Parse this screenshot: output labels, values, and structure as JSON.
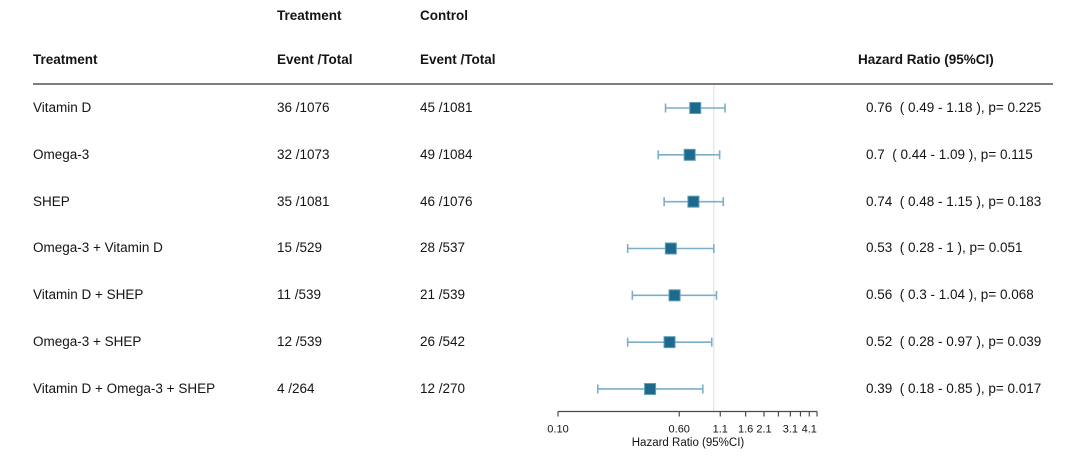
{
  "table": {
    "group_headers": {
      "treatment": "Treatment",
      "control": "Control"
    },
    "col_headers": {
      "treatment": "Treatment",
      "treatment_event_total": "Event /Total",
      "control_event_total": "Event /Total",
      "hazard_ratio": "Hazard Ratio (95%CI)"
    },
    "rows": [
      {
        "treatment": "Vitamin D",
        "treatment_et": "36 /1076",
        "control_et": "45 /1081",
        "hr_text": "0.76  ( 0.49 - 1.18 ), p= 0.225"
      },
      {
        "treatment": "Omega-3",
        "treatment_et": "32 /1073",
        "control_et": "49 /1084",
        "hr_text": "0.7  ( 0.44 - 1.09 ), p= 0.115"
      },
      {
        "treatment": "SHEP",
        "treatment_et": "35 /1081",
        "control_et": "46 /1076",
        "hr_text": "0.74  ( 0.48 - 1.15 ), p= 0.183"
      },
      {
        "treatment": "Omega-3 + Vitamin D",
        "treatment_et": "15 /529",
        "control_et": "28 /537",
        "hr_text": "0.53  ( 0.28 - 1 ), p= 0.051"
      },
      {
        "treatment": "Vitamin D + SHEP",
        "treatment_et": "11 /539",
        "control_et": "21 /539",
        "hr_text": "0.56  ( 0.3 - 1.04 ), p= 0.068"
      },
      {
        "treatment": "Omega-3 + SHEP",
        "treatment_et": "12 /539",
        "control_et": "26 /542",
        "hr_text": "0.52  ( 0.28 - 0.97 ), p= 0.039"
      },
      {
        "treatment": "Vitamin D + Omega-3 + SHEP",
        "treatment_et": "4 /264",
        "control_et": "12 /270",
        "hr_text": "0.39  ( 0.18 - 0.85 ), p= 0.017"
      }
    ]
  },
  "chart_data": {
    "type": "scatter",
    "subtype": "forest-plot",
    "title": "",
    "xlabel": "Hazard Ratio (95%CI)",
    "x_scale": "log",
    "xlim": [
      0.1,
      4.6
    ],
    "ref_line": 1.0,
    "grid": false,
    "series": [
      {
        "label": "Vitamin D",
        "hr": 0.76,
        "ci_low": 0.49,
        "ci_high": 1.18,
        "p": 0.225
      },
      {
        "label": "Omega-3",
        "hr": 0.7,
        "ci_low": 0.44,
        "ci_high": 1.09,
        "p": 0.115
      },
      {
        "label": "SHEP",
        "hr": 0.74,
        "ci_low": 0.48,
        "ci_high": 1.15,
        "p": 0.183
      },
      {
        "label": "Omega-3 + Vitamin D",
        "hr": 0.53,
        "ci_low": 0.28,
        "ci_high": 1.0,
        "p": 0.051
      },
      {
        "label": "Vitamin D + SHEP",
        "hr": 0.56,
        "ci_low": 0.3,
        "ci_high": 1.04,
        "p": 0.068
      },
      {
        "label": "Omega-3 + SHEP",
        "hr": 0.52,
        "ci_low": 0.28,
        "ci_high": 0.97,
        "p": 0.039
      },
      {
        "label": "Vitamin D + Omega-3 + SHEP",
        "hr": 0.39,
        "ci_low": 0.18,
        "ci_high": 0.85,
        "p": 0.017
      }
    ],
    "x_ticks": [
      {
        "value": 0.1,
        "label": "0.10"
      },
      {
        "value": 0.6,
        "label": "0.60"
      },
      {
        "value": 1.1,
        "label": "1.1"
      },
      {
        "value": 1.6,
        "label": "1.6"
      },
      {
        "value": 2.1,
        "label": "2.1"
      },
      {
        "value": 2.6,
        "label": ""
      },
      {
        "value": 3.1,
        "label": "3.1"
      },
      {
        "value": 3.6,
        "label": ""
      },
      {
        "value": 4.1,
        "label": "4.1"
      },
      {
        "value": 4.6,
        "label": ""
      }
    ],
    "colors": {
      "marker": "#1E6A8D",
      "marker_border": "#5E9DBB",
      "ci_line": "#7CAEC9",
      "ref_line": "#DEDEDE",
      "axis": "#4a4a4a",
      "text": "#141414"
    }
  }
}
